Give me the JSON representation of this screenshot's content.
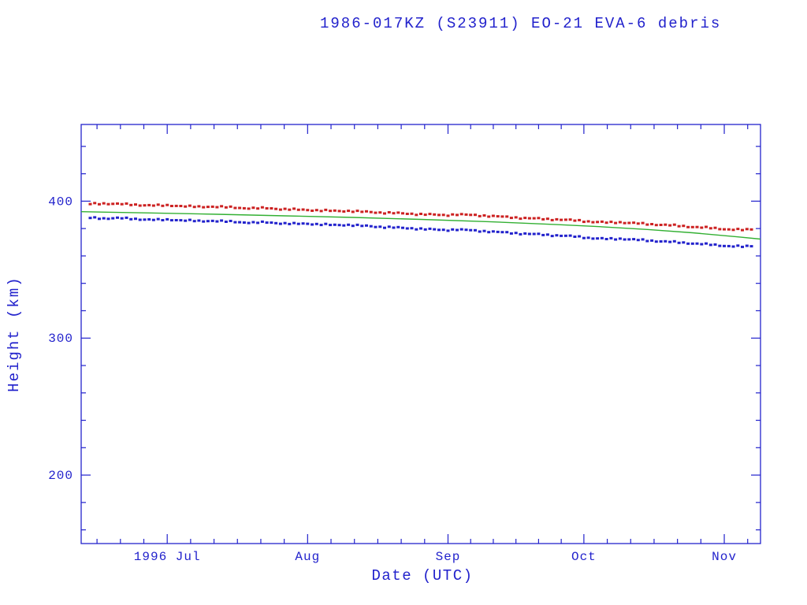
{
  "chart_data": {
    "type": "scatter",
    "title": "1986-017KZ (S23911) EO-21 EVA-6 debris",
    "xlabel": "Date (UTC)",
    "ylabel": "Height (km)",
    "x_unit": "day offset from 1996 Jun 12",
    "xlim": [
      0,
      150
    ],
    "ylim": [
      150,
      456
    ],
    "grid": false,
    "legend": "none",
    "y_major_ticks": [
      200,
      300,
      400
    ],
    "y_minor_step": 20,
    "x_major_ticks": [
      {
        "day": 19,
        "label": "1996 Jul"
      },
      {
        "day": 50,
        "label": "Aug"
      },
      {
        "day": 81,
        "label": "Sep"
      },
      {
        "day": 111,
        "label": "Oct"
      },
      {
        "day": 142,
        "label": "Nov"
      }
    ],
    "x_minor_divisions": 6,
    "colors": {
      "accent": "#2222cc",
      "apogee": "#cc2222",
      "perigee": "#2222cc",
      "mean": "#33b033",
      "background": "#ffffff"
    },
    "series": [
      {
        "name": "apogee-height",
        "type": "scatter",
        "marker": "square",
        "color": "#cc2222",
        "points": [
          [
            2,
            397.9
          ],
          [
            5,
            398.3
          ],
          [
            8,
            398.0
          ],
          [
            11,
            397.5
          ],
          [
            14,
            397.1
          ],
          [
            17,
            396.8
          ],
          [
            20,
            396.9
          ],
          [
            23,
            396.3
          ],
          [
            26,
            395.8
          ],
          [
            29,
            396.1
          ],
          [
            32,
            395.6
          ],
          [
            35,
            395.1
          ],
          [
            38,
            394.8
          ],
          [
            41,
            394.9
          ],
          [
            44,
            394.3
          ],
          [
            47,
            393.9
          ],
          [
            50,
            393.6
          ],
          [
            53,
            393.2
          ],
          [
            56,
            392.8
          ],
          [
            59,
            392.9
          ],
          [
            62,
            392.3
          ],
          [
            65,
            391.8
          ],
          [
            68,
            391.5
          ],
          [
            71,
            391.0
          ],
          [
            74,
            390.6
          ],
          [
            77,
            390.2
          ],
          [
            80,
            389.8
          ],
          [
            83,
            390.3
          ],
          [
            86,
            389.9
          ],
          [
            89,
            389.4
          ],
          [
            92,
            388.8
          ],
          [
            95,
            388.2
          ],
          [
            98,
            387.6
          ],
          [
            101,
            387.2
          ],
          [
            104,
            386.8
          ],
          [
            107,
            386.3
          ],
          [
            110,
            385.8
          ],
          [
            113,
            384.9
          ],
          [
            116,
            384.4
          ],
          [
            119,
            384.6
          ],
          [
            122,
            383.9
          ],
          [
            125,
            383.3
          ],
          [
            128,
            382.8
          ],
          [
            131,
            382.2
          ],
          [
            134,
            381.5
          ],
          [
            137,
            380.8
          ],
          [
            140,
            380.2
          ],
          [
            143,
            379.4
          ],
          [
            146,
            379.0
          ],
          [
            148,
            379.3
          ]
        ]
      },
      {
        "name": "perigee-height",
        "type": "scatter",
        "marker": "square",
        "color": "#2222cc",
        "points": [
          [
            2,
            387.8
          ],
          [
            5,
            387.4
          ],
          [
            8,
            387.7
          ],
          [
            11,
            387.1
          ],
          [
            14,
            386.7
          ],
          [
            17,
            386.3
          ],
          [
            20,
            386.5
          ],
          [
            23,
            385.9
          ],
          [
            26,
            385.4
          ],
          [
            29,
            385.7
          ],
          [
            32,
            385.1
          ],
          [
            35,
            384.7
          ],
          [
            38,
            384.3
          ],
          [
            41,
            384.5
          ],
          [
            44,
            383.9
          ],
          [
            47,
            383.4
          ],
          [
            50,
            383.6
          ],
          [
            53,
            383.0
          ],
          [
            56,
            382.5
          ],
          [
            59,
            382.7
          ],
          [
            62,
            382.0
          ],
          [
            65,
            381.4
          ],
          [
            68,
            381.0
          ],
          [
            71,
            380.4
          ],
          [
            74,
            380.0
          ],
          [
            77,
            379.4
          ],
          [
            80,
            378.9
          ],
          [
            83,
            379.3
          ],
          [
            86,
            378.7
          ],
          [
            89,
            378.1
          ],
          [
            92,
            377.4
          ],
          [
            95,
            376.8
          ],
          [
            98,
            376.2
          ],
          [
            101,
            375.7
          ],
          [
            104,
            375.2
          ],
          [
            107,
            374.6
          ],
          [
            110,
            374.0
          ],
          [
            113,
            372.9
          ],
          [
            116,
            372.4
          ],
          [
            119,
            372.6
          ],
          [
            122,
            371.9
          ],
          [
            125,
            371.3
          ],
          [
            128,
            370.7
          ],
          [
            131,
            370.1
          ],
          [
            134,
            369.4
          ],
          [
            137,
            368.7
          ],
          [
            140,
            368.0
          ],
          [
            143,
            367.2
          ],
          [
            146,
            366.8
          ],
          [
            148,
            367.1
          ]
        ]
      },
      {
        "name": "mean-height-fit",
        "type": "line",
        "color": "#33b033",
        "points": [
          [
            0,
            392.3
          ],
          [
            15,
            391.4
          ],
          [
            30,
            390.4
          ],
          [
            45,
            389.3
          ],
          [
            60,
            388.1
          ],
          [
            75,
            386.7
          ],
          [
            90,
            385.0
          ],
          [
            105,
            382.9
          ],
          [
            115,
            381.3
          ],
          [
            125,
            379.3
          ],
          [
            135,
            376.9
          ],
          [
            145,
            373.9
          ],
          [
            150,
            372.3
          ]
        ]
      }
    ]
  }
}
